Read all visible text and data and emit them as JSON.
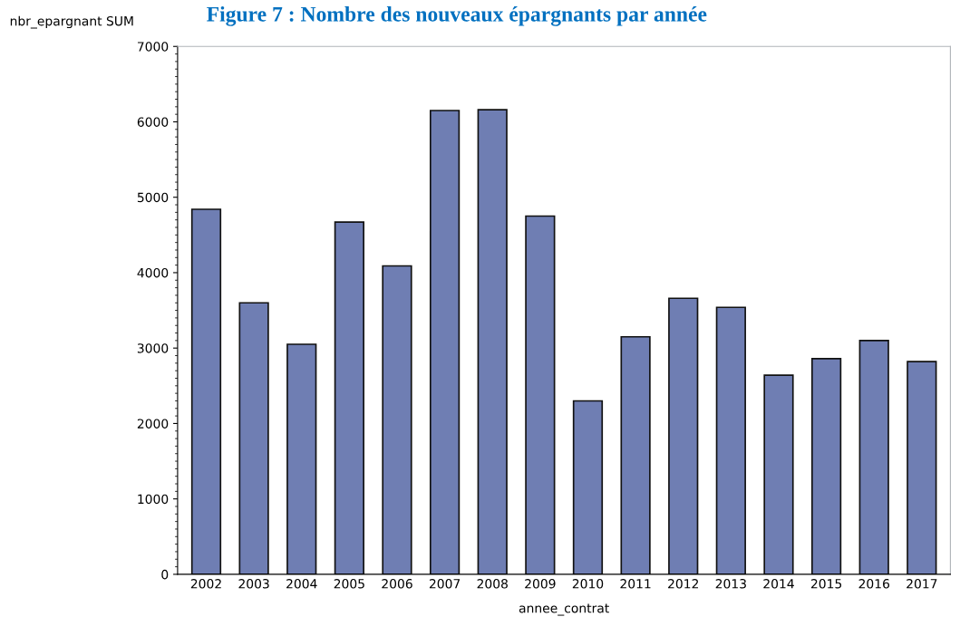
{
  "chart_data": {
    "type": "bar",
    "title": "Figure 7 : Nombre des nouveaux épargnants par année",
    "xlabel": "annee_contrat",
    "ylabel": "nbr_epargnant SUM",
    "categories": [
      "2002",
      "2003",
      "2004",
      "2005",
      "2006",
      "2007",
      "2008",
      "2009",
      "2010",
      "2011",
      "2012",
      "2013",
      "2014",
      "2015",
      "2016",
      "2017"
    ],
    "values": [
      4840,
      3600,
      3050,
      4670,
      4090,
      6150,
      6160,
      4750,
      2300,
      3150,
      3660,
      3540,
      2640,
      2860,
      3100,
      2820
    ],
    "color": "#6f7eb3",
    "ylim": [
      0,
      7000
    ],
    "yticks": [
      0,
      1000,
      2000,
      3000,
      4000,
      5000,
      6000,
      7000
    ],
    "grid": false,
    "legend": false
  }
}
